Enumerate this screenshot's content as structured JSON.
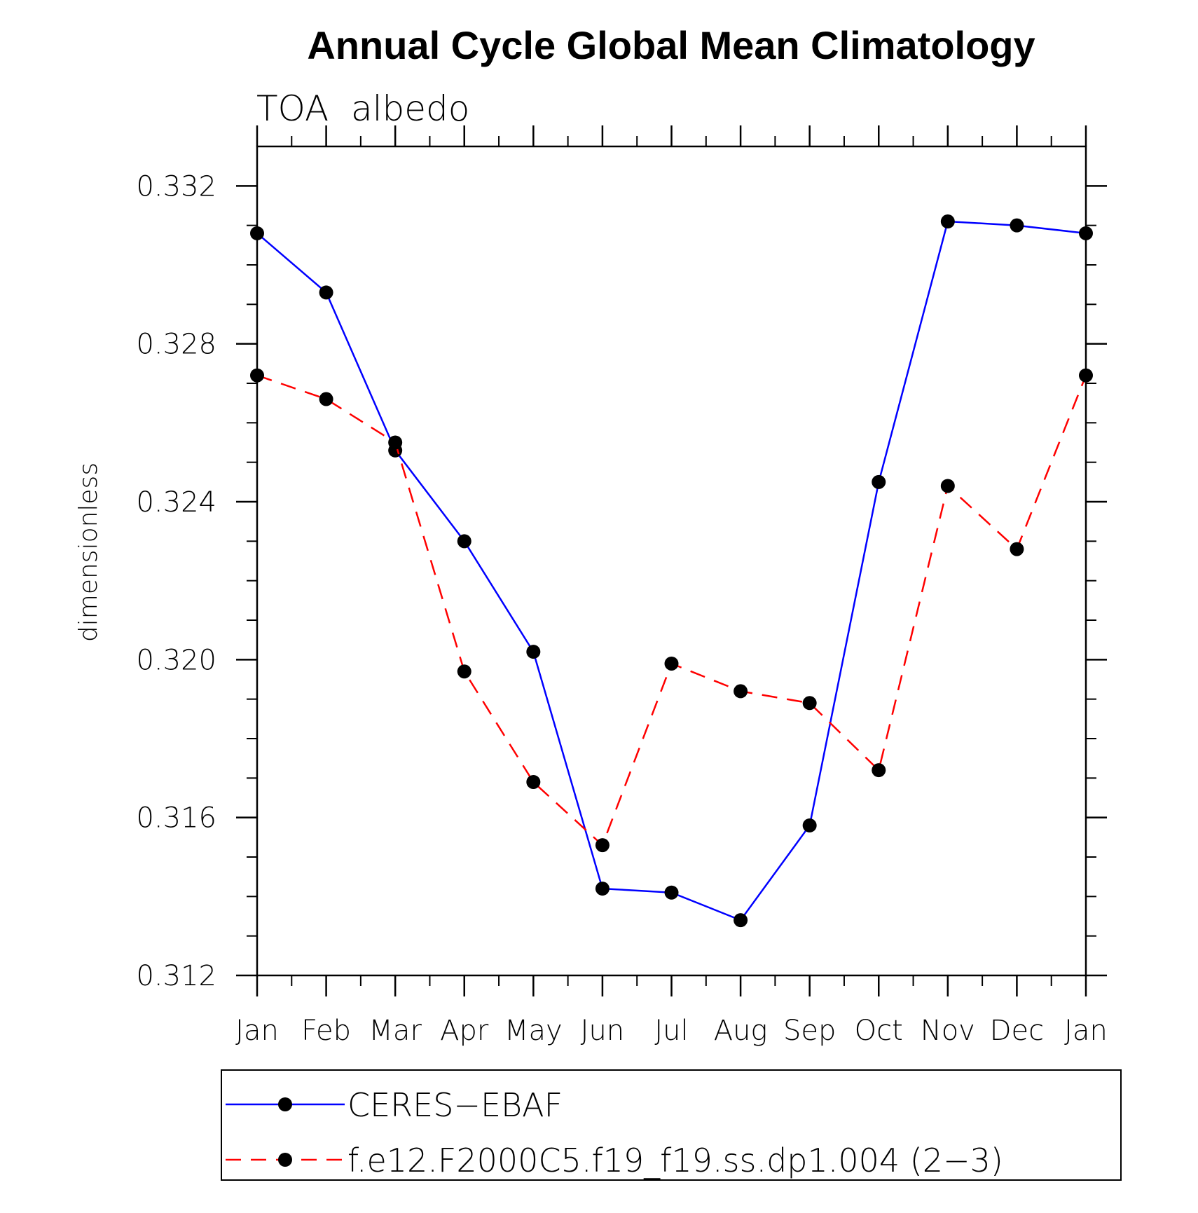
{
  "chart_data": {
    "type": "line",
    "title": "Annual Cycle Global Mean Climatology",
    "subtitle": "TOA  albedo",
    "xlabel": "",
    "ylabel": "dimensionless",
    "categories": [
      "Jan",
      "Feb",
      "Mar",
      "Apr",
      "May",
      "Jun",
      "Jul",
      "Aug",
      "Sep",
      "Oct",
      "Nov",
      "Dec",
      "Jan"
    ],
    "ylim": [
      0.312,
      0.333
    ],
    "yticks": [
      0.312,
      0.316,
      0.32,
      0.324,
      0.328,
      0.332
    ],
    "ytick_labels": [
      "0.312",
      "0.316",
      "0.320",
      "0.324",
      "0.328",
      "0.332"
    ],
    "grid": false,
    "legend_position": "bottom",
    "series": [
      {
        "name": "CERES−EBAF",
        "color": "#0000ff",
        "dash": "solid",
        "marker": "filled-circle",
        "values": [
          0.3308,
          0.3293,
          0.3253,
          0.323,
          0.3202,
          0.3142,
          0.3141,
          0.3134,
          0.3158,
          0.3245,
          0.3311,
          0.331,
          0.3308
        ]
      },
      {
        "name": "f.e12.F2000C5.f19_f19.ss.dp1.004 (2−3)",
        "color": "#ff0000",
        "dash": "dashed",
        "marker": "filled-circle",
        "values": [
          0.3272,
          0.3266,
          0.3255,
          0.3197,
          0.3169,
          0.3153,
          0.3199,
          0.3192,
          0.3189,
          0.3172,
          0.3244,
          0.3228,
          0.3272
        ]
      }
    ]
  }
}
